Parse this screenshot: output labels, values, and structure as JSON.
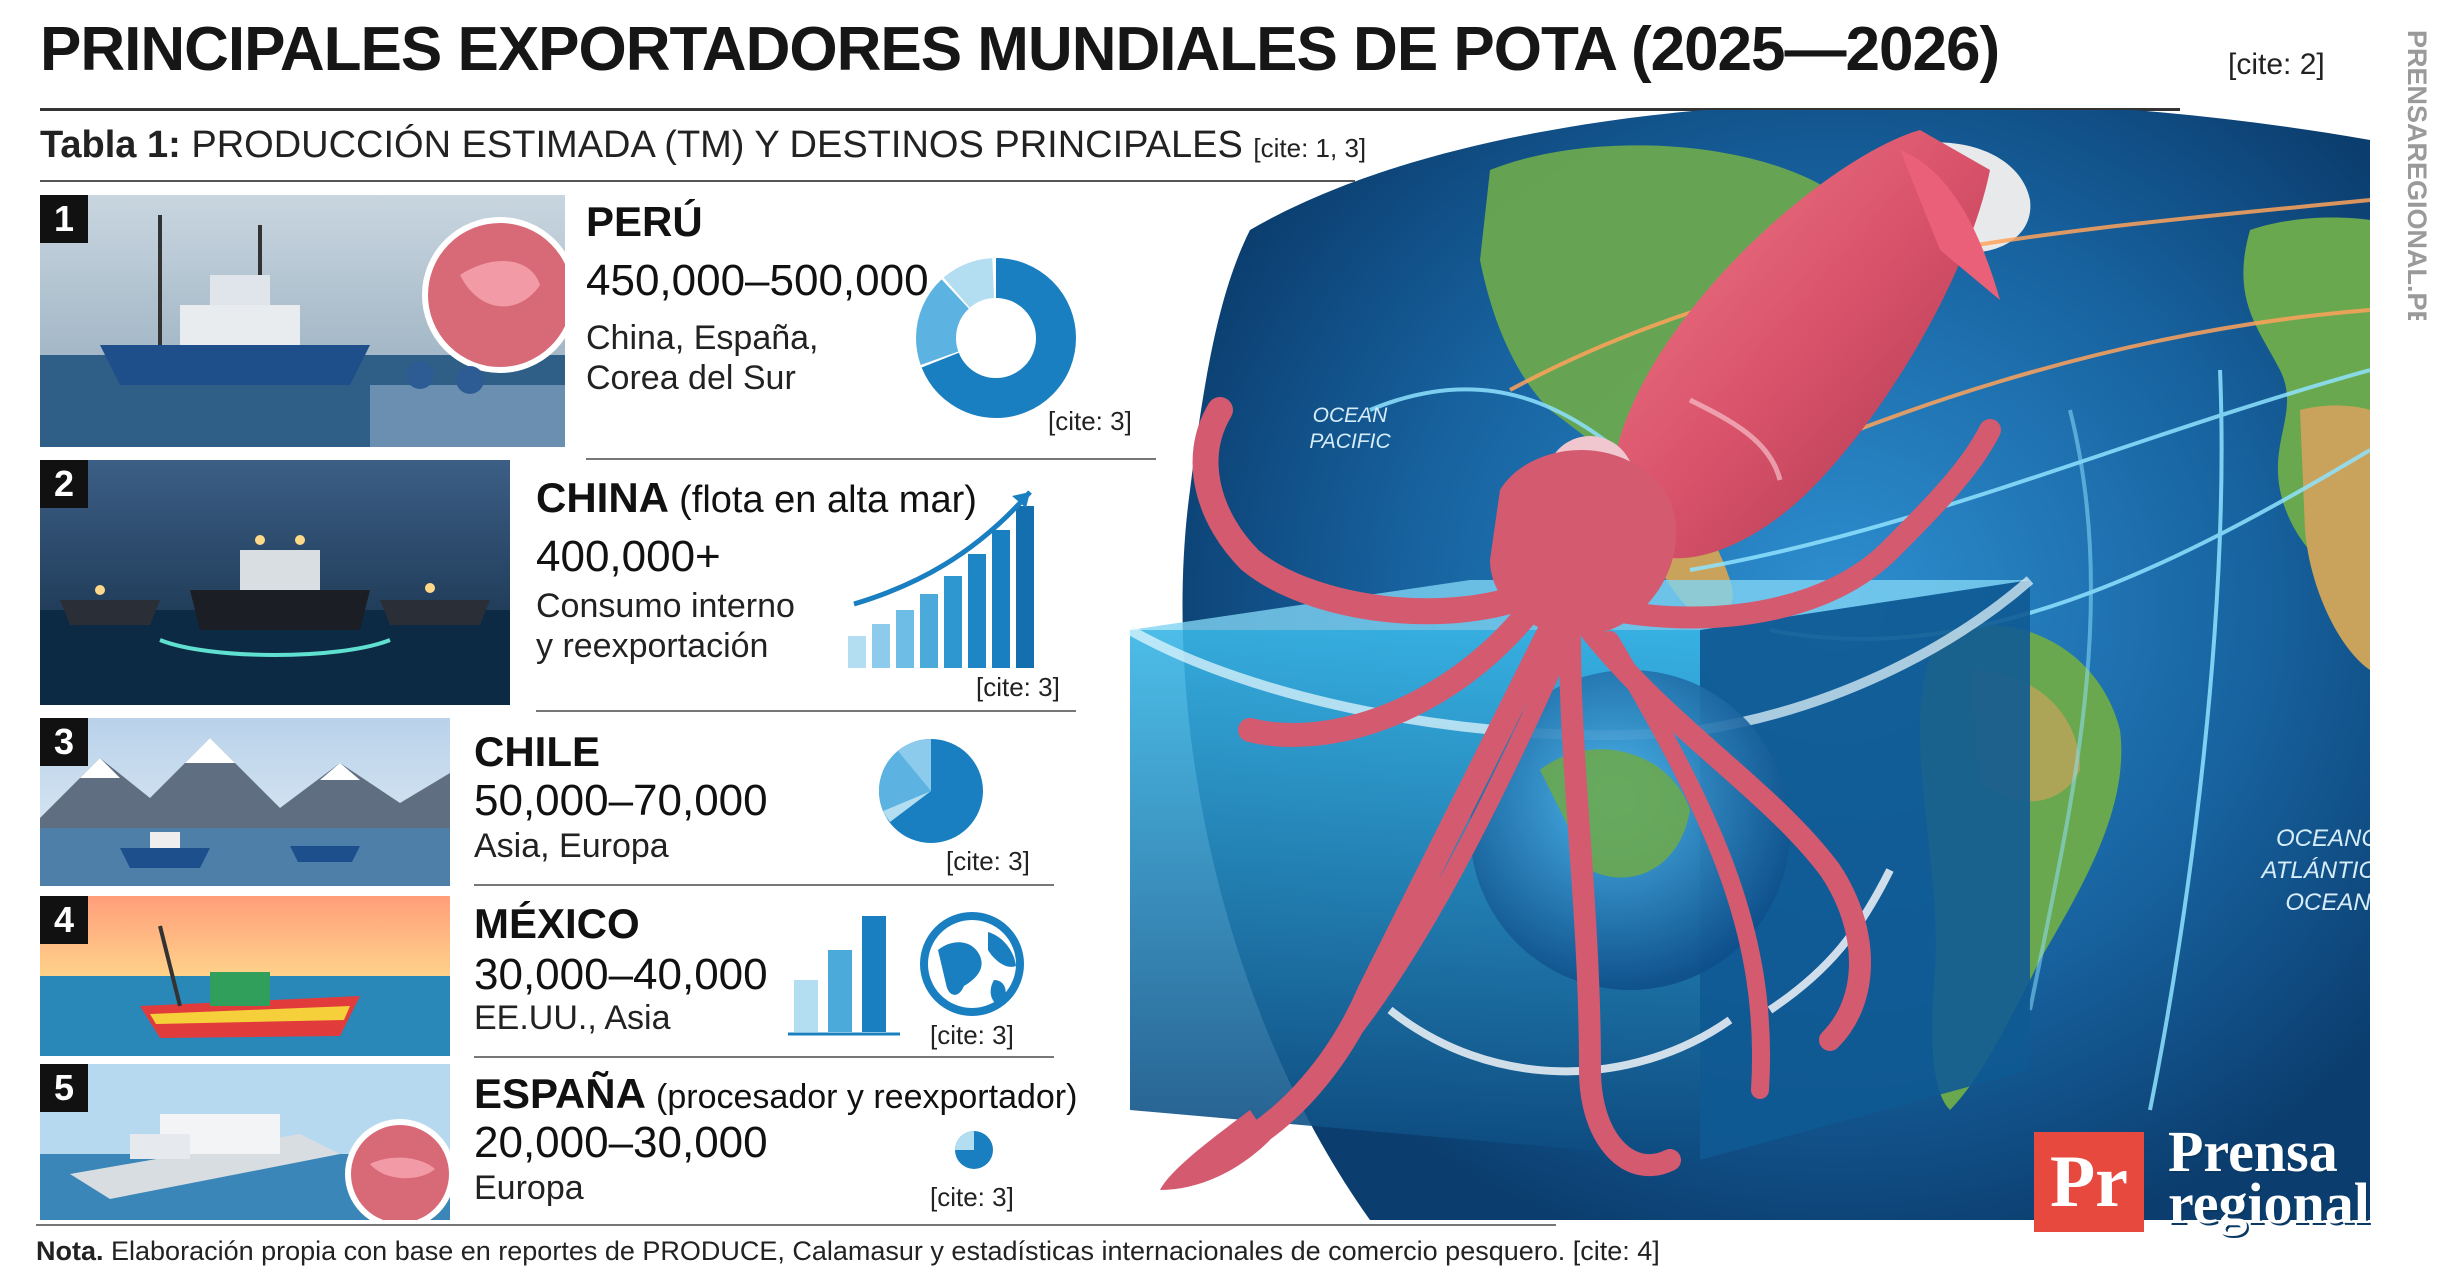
{
  "title": "PRINCIPALES EXPORTADORES MUNDIALES DE POTA (2025—2026)",
  "title_cite": "[cite: 2]",
  "subtitle": {
    "prefix": "Tabla 1:",
    "text": "PRODUCCIÓN ESTIMADA (TM) Y DESTINOS PRINCIPALES",
    "cite": "[cite: 1, 3]"
  },
  "rows": [
    {
      "rank": "1",
      "country": "PERÚ",
      "note": "",
      "volume": "450,000–500,000",
      "dest_line1": "China, España,",
      "dest_line2": "Corea del Sur",
      "cite": "[cite: 3]",
      "chart_icon": "donut-chart-icon"
    },
    {
      "rank": "2",
      "country": "CHINA",
      "note": "(flota en alta mar)",
      "volume": "400,000+",
      "dest_line1": "Consumo interno",
      "dest_line2": "y reexportación",
      "cite": "[cite: 3]",
      "chart_icon": "growth-bar-chart-icon"
    },
    {
      "rank": "3",
      "country": "CHILE",
      "note": "",
      "volume": "50,000–70,000",
      "dest_line1": "Asia, Europa",
      "dest_line2": "",
      "cite": "[cite: 3]",
      "chart_icon": "pie-chart-icon"
    },
    {
      "rank": "4",
      "country": "MÉXICO",
      "note": "",
      "volume": "30,000–40,000",
      "dest_line1": "EE.UU., Asia",
      "dest_line2": "",
      "cite": "[cite: 3]",
      "chart_icon": "bar-chart-globe-icon"
    },
    {
      "rank": "5",
      "country": "ESPAÑA",
      "note": "(procesador y reexportador)",
      "volume": "20,000–30,000",
      "dest_line1": "Europa",
      "dest_line2": "",
      "cite": "[cite: 3]",
      "chart_icon": "mini-pie-icon"
    }
  ],
  "map_labels": {
    "pacific": [
      "OCEAN",
      "PACIFIC"
    ],
    "atlantic": [
      "OCEANO",
      "ATLÁNTICO",
      "OCEAN"
    ]
  },
  "brand": {
    "logo_mark": "Pr",
    "logo_line1": "Prensa",
    "logo_line2": "regional",
    "vertical": "PRENSAREGIONAL.PE"
  },
  "footnote": {
    "prefix": "Nota.",
    "text": "Elaboración propia con base en reportes de PRODUCE, Calamasur y estadísticas internacionales de comercio pesquero. [cite: 4]"
  },
  "colors": {
    "accent_blue": "#1a7fc1",
    "light_blue": "#a8d8ef",
    "logo_red": "#e8493f",
    "ocean_dark": "#0b3d6e"
  }
}
